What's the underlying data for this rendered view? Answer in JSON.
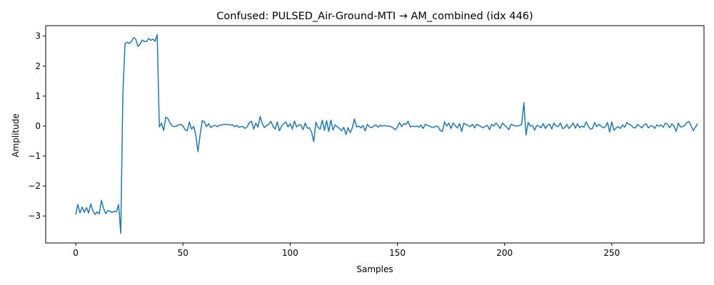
{
  "chart_data": {
    "type": "line",
    "title": "Confused: PULSED_Air-Ground-MTI → AM_combined (idx 446)",
    "xlabel": "Samples",
    "ylabel": "Amplitude",
    "xlim": [
      -14,
      293
    ],
    "ylim": [
      -3.9,
      3.35
    ],
    "x_ticks": [
      0,
      50,
      100,
      150,
      200,
      250
    ],
    "x_tick_labels": [
      "0",
      "50",
      "100",
      "150",
      "200",
      "250"
    ],
    "y_ticks": [
      -3,
      -2,
      -1,
      0,
      1,
      2,
      3
    ],
    "y_tick_labels": [
      "−3",
      "−2",
      "−1",
      "0",
      "1",
      "2",
      "3"
    ],
    "grid": false,
    "line_color": "#1f77b4",
    "series": [
      {
        "values": [
          -2.95,
          -2.62,
          -2.9,
          -2.7,
          -2.88,
          -2.72,
          -2.9,
          -2.6,
          -2.82,
          -2.95,
          -2.86,
          -2.93,
          -2.48,
          -2.75,
          -2.92,
          -2.82,
          -2.84,
          -2.88,
          -2.84,
          -2.86,
          -2.62,
          -3.58,
          1.1,
          2.75,
          2.8,
          2.76,
          2.82,
          2.95,
          2.9,
          2.66,
          2.73,
          2.87,
          2.82,
          2.82,
          2.92,
          2.86,
          2.9,
          2.83,
          3.05,
          -0.03,
          0.1,
          -0.15,
          0.3,
          0.25,
          0.1,
          0.0,
          -0.02,
          0.0,
          0.04,
          0.06,
          0.0,
          -0.12,
          -0.16,
          0.14,
          -0.1,
          -0.01,
          -0.3,
          -0.85,
          -0.3,
          0.18,
          0.14,
          -0.02,
          0.08,
          -0.05,
          0.0,
          0.02,
          -0.02,
          0.03,
          0.03,
          0.06,
          0.05,
          0.06,
          0.03,
          0.05,
          -0.02,
          0.02,
          -0.04,
          -0.02,
          -0.02,
          -0.08,
          -0.02,
          0.12,
          0.16,
          -0.1,
          0.1,
          -0.04,
          0.32,
          0.08,
          -0.05,
          0.02,
          0.06,
          0.16,
          -0.01,
          -0.1,
          0.14,
          -0.16,
          0.0,
          0.08,
          0.14,
          -0.03,
          0.08,
          -0.1,
          0.17,
          -0.03,
          0.04,
          0.04,
          -0.12,
          0.1,
          -0.07,
          -0.06,
          -0.2,
          -0.52,
          0.13,
          -0.04,
          -0.1,
          0.2,
          -0.14,
          0.18,
          -0.18,
          0.2,
          -0.13,
          0.04,
          -0.03,
          -0.08,
          -0.16,
          -0.04,
          -0.28,
          -0.05,
          -0.22,
          -0.06,
          0.24,
          -0.03,
          0.0,
          -0.06,
          0.02,
          -0.16,
          0.06,
          -0.03,
          -0.05,
          0.0,
          0.04,
          -0.04,
          0.03,
          0.0,
          0.02,
          0.0,
          0.0,
          -0.02,
          -0.06,
          -0.12,
          -0.04,
          0.12,
          -0.02,
          0.08,
          0.05,
          0.16,
          -0.03,
          0.0,
          -0.02,
          0.0,
          -0.04,
          0.03,
          -0.08,
          0.06,
          0.02,
          0.0,
          -0.04,
          -0.04,
          0.0,
          -0.02,
          -0.15,
          -0.18,
          0.14,
          0.0,
          0.1,
          -0.08,
          0.1,
          0.02,
          -0.06,
          0.08,
          -0.18,
          0.1,
          0.05,
          0.02,
          -0.02,
          0.06,
          -0.06,
          0.06,
          0.02,
          -0.02,
          -0.06,
          0.0,
          0.02,
          -0.12,
          0.06,
          0.0,
          0.1,
          0.02,
          -0.08,
          0.1,
          0.03,
          -0.04,
          -0.12,
          0.06,
          0.03,
          0.0,
          0.0,
          0.02,
          0.06,
          0.78,
          -0.3,
          0.12,
          0.0,
          0.02,
          -0.14,
          0.02,
          0.0,
          -0.06,
          0.08,
          -0.08,
          0.02,
          0.06,
          -0.1,
          0.1,
          0.0,
          -0.02,
          0.1,
          -0.08,
          -0.06,
          0.06,
          -0.08,
          0.0,
          0.1,
          -0.07,
          0.08,
          -0.06,
          0.0,
          -0.04,
          0.14,
          0.0,
          -0.1,
          -0.08,
          0.12,
          -0.02,
          0.06,
          0.0,
          -0.06,
          -0.02,
          0.12,
          -0.2,
          0.14,
          -0.14,
          -0.06,
          -0.02,
          -0.08,
          0.04,
          -0.04,
          0.12,
          0.06,
          0.03,
          -0.05,
          -0.06,
          0.05,
          0.0,
          -0.06,
          0.04,
          0.08,
          -0.06,
          0.0,
          0.0,
          -0.08,
          0.04,
          0.0,
          0.04,
          -0.04,
          0.1,
          0.06,
          -0.06,
          0.08,
          0.0,
          -0.18,
          0.1,
          -0.03,
          -0.02,
          0.02,
          0.12,
          0.15,
          0.0,
          -0.15,
          -0.04,
          0.08
        ]
      }
    ]
  }
}
